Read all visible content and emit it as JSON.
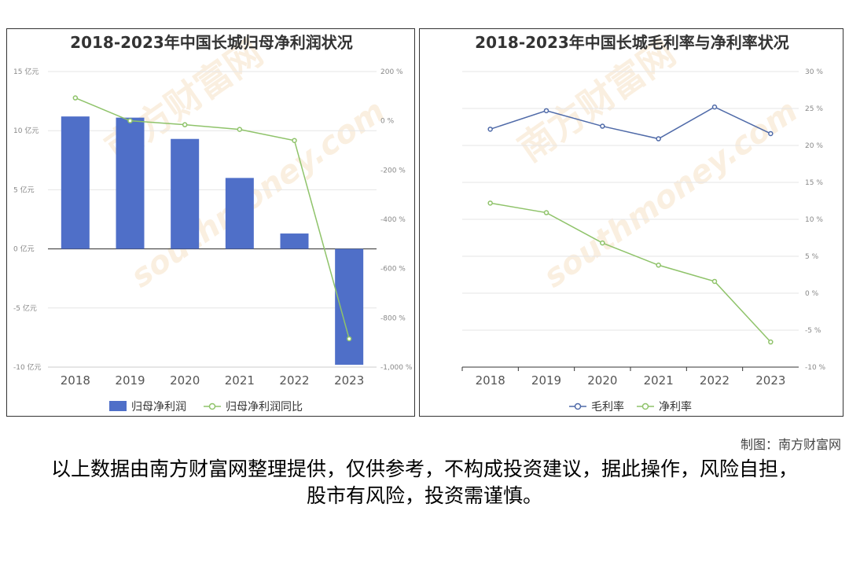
{
  "chart_data": [
    {
      "type": "bar",
      "title": "2018-2023年中国长城归母净利润状况",
      "categories": [
        "2018",
        "2019",
        "2020",
        "2021",
        "2022",
        "2023"
      ],
      "y_left": {
        "ylim": [
          -10,
          15
        ],
        "ticks": [
          15,
          10,
          5,
          0,
          -5,
          -10
        ],
        "unit": "亿元"
      },
      "y_right": {
        "ylim": [
          -1000,
          200
        ],
        "ticks": [
          200,
          0,
          -200,
          -400,
          -600,
          -800,
          -1000
        ],
        "unit": "%"
      },
      "series": [
        {
          "name": "归母净利润",
          "type": "bar",
          "axis": "left",
          "color": "#4f6fc8",
          "values": [
            11.2,
            11.1,
            9.3,
            6.0,
            1.3,
            -9.8
          ]
        },
        {
          "name": "归母净利润同比",
          "type": "line",
          "axis": "right",
          "color": "#8fc36a",
          "values": [
            93,
            0,
            -16,
            -35,
            -80,
            -885
          ]
        }
      ],
      "legend": "bottom"
    },
    {
      "type": "line",
      "title": "2018-2023年中国长城毛利率与净利率状况",
      "categories": [
        "2018",
        "2019",
        "2020",
        "2021",
        "2022",
        "2023"
      ],
      "y_right": {
        "ylim": [
          -10,
          30
        ],
        "ticks": [
          30,
          25,
          20,
          15,
          10,
          5,
          0,
          -5,
          -10
        ],
        "unit": "%"
      },
      "series": [
        {
          "name": "毛利率",
          "color": "#4f6aa8",
          "values": [
            22.2,
            24.7,
            22.6,
            20.9,
            25.2,
            21.6
          ]
        },
        {
          "name": "净利率",
          "color": "#8fc36a",
          "values": [
            12.2,
            10.9,
            6.8,
            3.8,
            1.6,
            -6.6
          ]
        }
      ],
      "legend": "bottom"
    }
  ],
  "watermark": {
    "brand": "南方财富网",
    "domain": "southmoney.com"
  },
  "credit": "制图：南方财富网",
  "disclaimer": "以上数据由南方财富网整理提供，仅供参考，不构成投资建议，据此操作，风险自担，股市有风险，投资需谨慎。"
}
